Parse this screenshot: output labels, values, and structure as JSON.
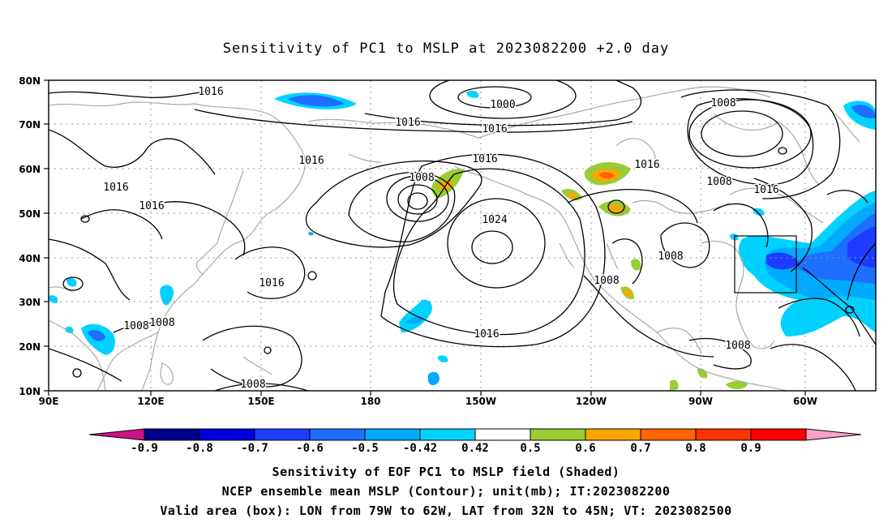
{
  "title": "Sensitivity of PC1 to MSLP at 2023082200 +2.0 day",
  "map": {
    "lat_labels": [
      "80N",
      "70N",
      "60N",
      "50N",
      "40N",
      "30N",
      "20N",
      "10N"
    ],
    "lon_labels": [
      "90E",
      "120E",
      "150E",
      "180",
      "150W",
      "120W",
      "90W",
      "60W"
    ],
    "contour_labels": [
      {
        "text": "1016"
      },
      {
        "text": "1000"
      },
      {
        "text": "1016"
      },
      {
        "text": "1016"
      },
      {
        "text": "1008"
      },
      {
        "text": "1016"
      },
      {
        "text": "1016"
      },
      {
        "text": "1016"
      },
      {
        "text": "1016"
      },
      {
        "text": "1008"
      },
      {
        "text": "1016"
      },
      {
        "text": "1016"
      },
      {
        "text": "1008"
      },
      {
        "text": "1024"
      },
      {
        "text": "1008"
      },
      {
        "text": "1008"
      },
      {
        "text": "1016"
      },
      {
        "text": "1008"
      },
      {
        "text": "1008"
      },
      {
        "text": "1008"
      },
      {
        "text": "1016"
      },
      {
        "text": "1008"
      }
    ]
  },
  "colorbar": {
    "labels": [
      "-0.9",
      "-0.8",
      "-0.7",
      "-0.6",
      "-0.5",
      "-0.42",
      "0.42",
      "0.5",
      "0.6",
      "0.7",
      "0.8",
      "0.9"
    ],
    "colors": [
      "#00008c",
      "#0000dc",
      "#1e3cff",
      "#1e6eff",
      "#00aaff",
      "#00d2ff",
      "#ffffff",
      "#9acd32",
      "#ffa500",
      "#ff6400",
      "#ff3200",
      "#ff0000"
    ],
    "neg_tip_color": "#c71585",
    "pos_tip_color": "#ffa0c8"
  },
  "captions": {
    "line1": "Sensitivity of EOF PC1 to MSLP field (Shaded)",
    "line2": "NCEP ensemble mean MSLP (Contour); unit(mb); IT:2023082200",
    "line3": "Valid area (box): LON from 79W to 62W, LAT from 32N to 45N; VT: 2023082500"
  }
}
